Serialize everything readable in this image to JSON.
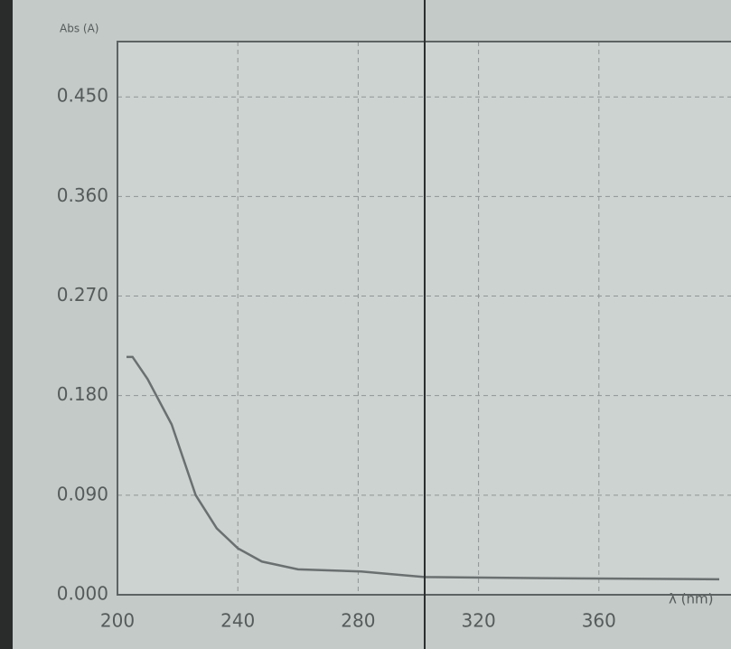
{
  "chart_data": {
    "type": "line",
    "y_label": "Abs (A)",
    "x_label": "λ (nm)",
    "xlim": [
      200,
      400
    ],
    "ylim": [
      0,
      0.5
    ],
    "xticks": [
      200,
      240,
      280,
      320,
      360
    ],
    "yticks": [
      {
        "value": 0,
        "label": "0.000"
      },
      {
        "value": 0.09,
        "label": "0.090"
      },
      {
        "value": 0.18,
        "label": "0.180"
      },
      {
        "value": 0.27,
        "label": "0.270"
      },
      {
        "value": 0.36,
        "label": "0.360"
      },
      {
        "value": 0.45,
        "label": "0.450"
      }
    ],
    "grid": true,
    "series": [
      {
        "color": "#6a6f70",
        "x": [
          203,
          205,
          210,
          218,
          226,
          233,
          240,
          248,
          260,
          281,
          302,
          341,
          400
        ],
        "values": [
          0.215,
          0.215,
          0.195,
          0.154,
          0.09,
          0.06,
          0.042,
          0.03,
          0.023,
          0.021,
          0.016,
          0.015,
          0.014
        ]
      }
    ]
  }
}
